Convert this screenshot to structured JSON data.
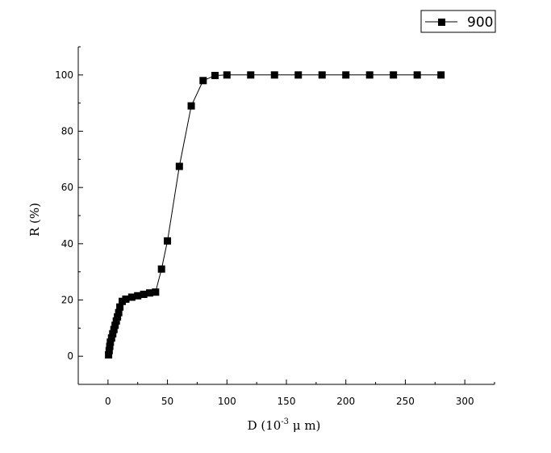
{
  "chart_data": {
    "type": "line",
    "xlabel": "D (10",
    "xlabel_exponent": "-3",
    "xlabel_unit": " μ m)",
    "ylabel": "R (%)",
    "xlim": [
      -25,
      325
    ],
    "ylim": [
      -10,
      110
    ],
    "xticks": [
      0,
      50,
      100,
      150,
      200,
      250,
      300
    ],
    "yticks": [
      0,
      20,
      40,
      60,
      80,
      100
    ],
    "grid": false,
    "legend_position": "top-right",
    "series": [
      {
        "name": "900",
        "marker": "square",
        "color": "#000000",
        "x": [
          0.5,
          1,
          1.5,
          2,
          3,
          4,
          5,
          6,
          7,
          8,
          9,
          10,
          12,
          15,
          20,
          25,
          30,
          35,
          40,
          45,
          50,
          60,
          70,
          80,
          90,
          100,
          120,
          140,
          160,
          180,
          200,
          220,
          240,
          260,
          280
        ],
        "y": [
          0.5,
          2,
          3.5,
          5,
          6.5,
          8,
          9.5,
          11,
          12.5,
          14,
          15.5,
          17.5,
          19.5,
          20.3,
          21,
          21.5,
          22,
          22.5,
          22.8,
          31,
          41,
          67.5,
          89,
          98,
          99.8,
          100,
          100,
          100,
          100,
          100,
          100,
          100,
          100,
          100,
          100
        ]
      }
    ]
  }
}
